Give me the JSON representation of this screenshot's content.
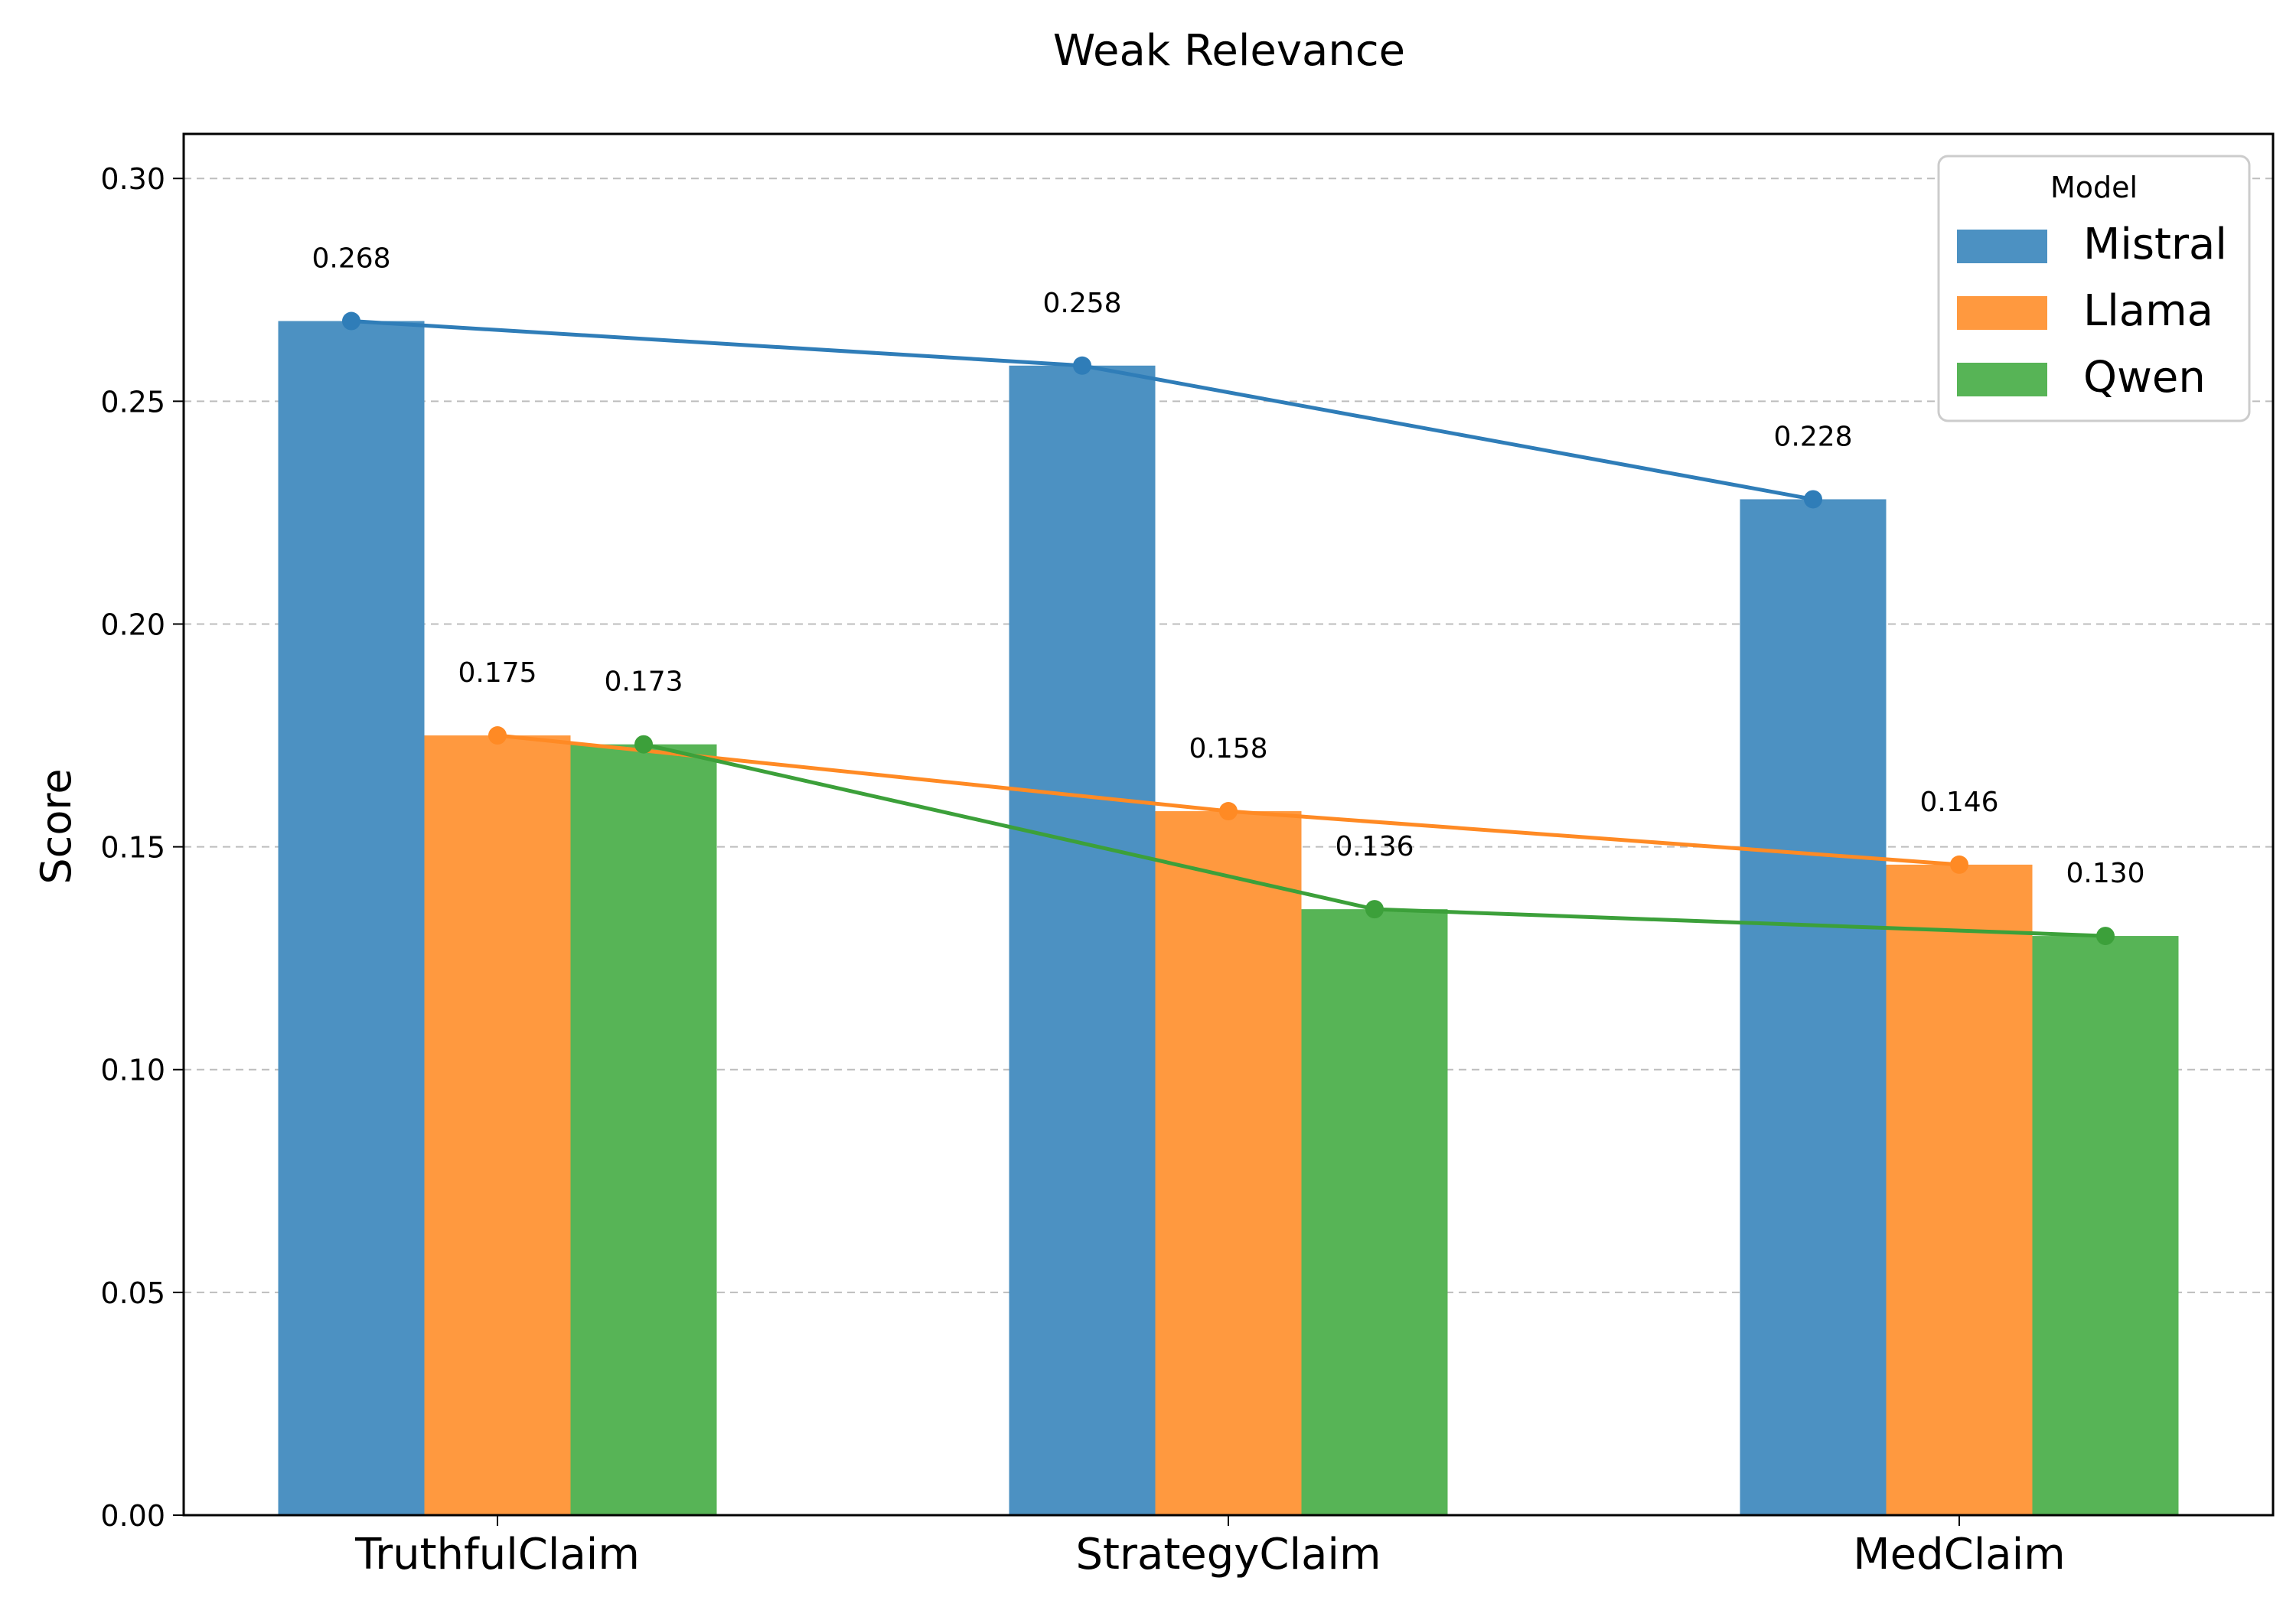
{
  "chart_data": {
    "type": "bar",
    "title": "Weak Relevance",
    "xlabel": "",
    "ylabel": "Score",
    "categories": [
      "TruthfulClaim",
      "StrategyClaim",
      "MedClaim"
    ],
    "series": [
      {
        "name": "Mistral",
        "values": [
          0.268,
          0.258,
          0.228
        ],
        "labels": [
          "0.268",
          "0.258",
          "0.228"
        ],
        "bar_color": "#4C91C2",
        "line_color": "#2F7DB8"
      },
      {
        "name": "Llama",
        "values": [
          0.175,
          0.158,
          0.146
        ],
        "labels": [
          "0.175",
          "0.158",
          "0.146"
        ],
        "bar_color": "#FF993F",
        "line_color": "#FF8A24"
      },
      {
        "name": "Qwen",
        "values": [
          0.173,
          0.136,
          0.13
        ],
        "labels": [
          "0.173",
          "0.136",
          "0.130"
        ],
        "bar_color": "#57B456",
        "line_color": "#3CA03A"
      }
    ],
    "overlay": "line with markers per series connecting bar tops",
    "ylim": [
      0,
      0.31
    ],
    "yticks": [
      "0.00",
      "0.05",
      "0.10",
      "0.15",
      "0.20",
      "0.25",
      "0.30"
    ],
    "grid": "y dashed",
    "legend": {
      "title": "Model",
      "position": "top-right"
    }
  }
}
